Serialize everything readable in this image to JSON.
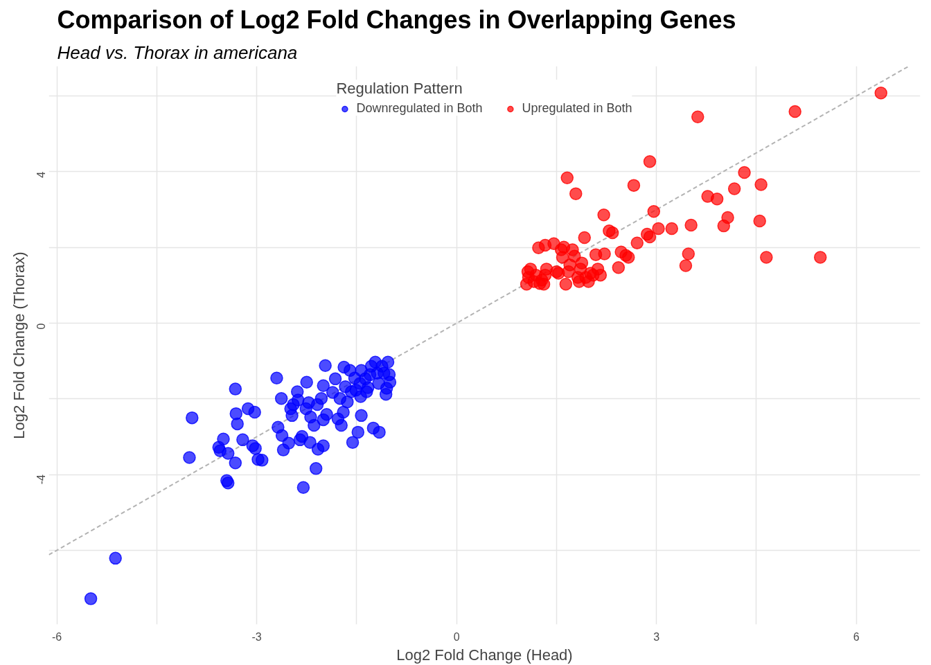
{
  "chart_data": {
    "type": "scatter",
    "title": "Comparison of Log2 Fold Changes in Overlapping Genes",
    "subtitle": "Head vs. Thorax in americana",
    "xlabel": "Log2 Fold Change (Head)",
    "ylabel": "Log2 Fold Change (Thorax)",
    "legend_title": "Regulation Pattern",
    "legend": "top",
    "grid": true,
    "marker": "circle",
    "xlim": [
      -6.12,
      6.96
    ],
    "ylim": [
      -7.96,
      6.79
    ],
    "xticks": [
      -6,
      {
        "value": -4.5,
        "label": null
      },
      -3,
      {
        "value": -1.5,
        "label": null
      },
      0,
      {
        "value": 1.5,
        "label": null
      },
      3,
      {
        "value": 4.5,
        "label": null
      },
      6
    ],
    "yticks": [
      {
        "value": -6,
        "label": null
      },
      -4,
      {
        "value": -2,
        "label": null
      },
      0,
      {
        "value": 2,
        "label": null
      },
      4,
      {
        "value": 6,
        "label": null
      }
    ],
    "series": [
      {
        "name": "Downregulated in Both",
        "color": "#0000ff",
        "x": [
          -5.49,
          -5.12,
          -4.01,
          -3.97,
          -3.57,
          -3.55,
          -3.5,
          -3.43,
          -3.45,
          -3.43,
          -3.32,
          -3.31,
          -3.29,
          -3.32,
          -3.21,
          -3.13,
          -3.03,
          -3.06,
          -3.02,
          -2.98,
          -2.92,
          -2.7,
          -2.68,
          -2.63,
          -2.6,
          -2.62,
          -2.52,
          -2.49,
          -2.45,
          -2.47,
          -2.39,
          -2.38,
          -2.35,
          -2.32,
          -2.3,
          -2.25,
          -2.26,
          -2.22,
          -2.19,
          -2.2,
          -2.14,
          -2.11,
          -2.08,
          -2.09,
          -2.03,
          -2.0,
          -2.0,
          -1.97,
          -2.0,
          -1.95,
          -1.86,
          -1.82,
          -1.78,
          -1.75,
          -1.73,
          -1.69,
          -1.67,
          -1.7,
          -1.64,
          -1.6,
          -1.58,
          -1.56,
          -1.53,
          -1.51,
          -1.48,
          -1.45,
          -1.43,
          -1.44,
          -1.43,
          -1.37,
          -1.35,
          -1.33,
          -1.3,
          -1.28,
          -1.25,
          -1.22,
          -1.19,
          -1.17,
          -1.16,
          -1.12,
          -1.09,
          -1.06,
          -1.05,
          -1.03,
          -1.01,
          -1.0
        ],
        "values": [
          -7.28,
          -6.21,
          -3.55,
          -2.5,
          -3.28,
          -3.37,
          -3.06,
          -3.44,
          -4.16,
          -4.22,
          -1.74,
          -2.39,
          -2.66,
          -3.69,
          -3.08,
          -2.26,
          -2.35,
          -3.24,
          -3.31,
          -3.6,
          -3.62,
          -1.45,
          -2.75,
          -1.99,
          -3.35,
          -2.97,
          -3.17,
          -2.26,
          -2.15,
          -2.44,
          -1.81,
          -2.03,
          -3.08,
          -2.99,
          -4.34,
          -1.56,
          -2.26,
          -2.1,
          -2.48,
          -3.15,
          -2.7,
          -3.84,
          -3.33,
          -2.15,
          -1.99,
          -3.24,
          -2.55,
          -1.12,
          -1.65,
          -2.41,
          -1.83,
          -1.47,
          -2.53,
          -1.99,
          -2.7,
          -1.16,
          -1.68,
          -2.35,
          -2.08,
          -1.25,
          -1.81,
          -3.15,
          -1.45,
          -1.77,
          -2.88,
          -1.59,
          -1.25,
          -1.94,
          -2.44,
          -1.47,
          -1.81,
          -1.7,
          -1.36,
          -1.14,
          -2.77,
          -1.03,
          -1.32,
          -1.59,
          -2.88,
          -1.14,
          -1.32,
          -1.88,
          -1.72,
          -1.03,
          -1.36,
          -1.56
        ]
      },
      {
        "name": "Upregulated in Both",
        "color": "#ff0000",
        "x": [
          1.05,
          1.08,
          1.07,
          1.11,
          1.16,
          1.19,
          1.23,
          1.25,
          1.28,
          1.31,
          1.33,
          1.35,
          1.33,
          1.46,
          1.5,
          1.53,
          1.57,
          1.59,
          1.61,
          1.66,
          1.64,
          1.68,
          1.7,
          1.74,
          1.77,
          1.79,
          1.82,
          1.84,
          1.86,
          1.88,
          1.92,
          1.94,
          1.98,
          2.01,
          2.05,
          2.09,
          2.12,
          2.16,
          2.21,
          2.22,
          2.29,
          2.34,
          2.43,
          2.47,
          2.54,
          2.58,
          2.66,
          2.71,
          2.86,
          2.9,
          2.9,
          2.96,
          3.03,
          3.23,
          3.44,
          3.48,
          3.52,
          3.62,
          3.77,
          3.91,
          4.01,
          4.07,
          4.17,
          4.32,
          4.55,
          4.57,
          4.65,
          5.08,
          5.46,
          6.37
        ],
        "values": [
          1.03,
          1.21,
          1.36,
          1.43,
          1.1,
          1.27,
          1.99,
          1.05,
          1.14,
          1.03,
          1.27,
          1.43,
          2.06,
          2.1,
          1.36,
          1.32,
          1.94,
          1.74,
          2.01,
          3.84,
          1.03,
          1.36,
          1.54,
          1.94,
          1.77,
          3.42,
          1.21,
          1.1,
          1.43,
          1.59,
          2.26,
          1.21,
          1.1,
          1.32,
          1.27,
          1.81,
          1.43,
          1.27,
          2.86,
          1.83,
          2.44,
          2.39,
          1.47,
          1.88,
          1.79,
          1.74,
          3.64,
          2.12,
          2.35,
          2.28,
          4.27,
          2.95,
          2.5,
          2.5,
          1.52,
          1.83,
          2.59,
          5.45,
          3.35,
          3.28,
          2.57,
          2.79,
          3.55,
          3.98,
          2.7,
          3.66,
          1.74,
          5.59,
          1.74,
          6.08
        ]
      },
      {
        "type": "line",
        "color": "#b3b3b3",
        "line_style": "dashed",
        "marker": "none",
        "x": [
          -6.12,
          6.79
        ],
        "values": [
          -6.12,
          6.79
        ]
      }
    ]
  }
}
